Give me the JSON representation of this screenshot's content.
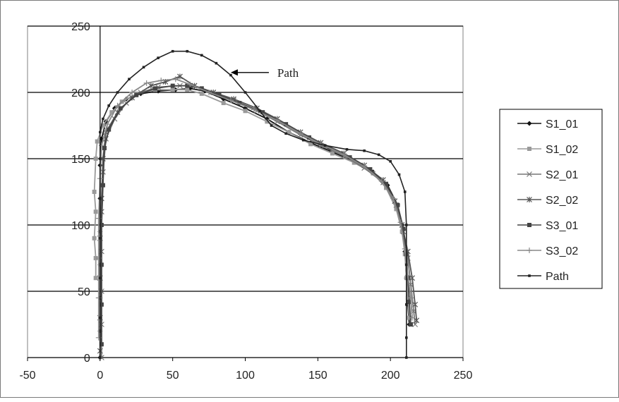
{
  "chart_data": {
    "type": "scatter",
    "title": "",
    "xlabel": "",
    "ylabel": "",
    "xlim": [
      -50,
      250
    ],
    "ylim": [
      0,
      250
    ],
    "x_ticks": [
      "-50",
      "0",
      "50",
      "100",
      "150",
      "200",
      "250"
    ],
    "y_ticks": [
      "0",
      "50",
      "100",
      "150",
      "200",
      "250"
    ],
    "grid": "horizontal major gridlines",
    "legend_position": "right",
    "annotation": {
      "text": "Path",
      "points_to": [
        90,
        215
      ]
    },
    "series": [
      {
        "name": "S1_01",
        "color": "#111111",
        "marker": "diamond",
        "points": [
          [
            0,
            0
          ],
          [
            0,
            20
          ],
          [
            0,
            45
          ],
          [
            0,
            70
          ],
          [
            0,
            95
          ],
          [
            0,
            120
          ],
          [
            0,
            145
          ],
          [
            1,
            165
          ],
          [
            4,
            178
          ],
          [
            10,
            188
          ],
          [
            18,
            195
          ],
          [
            28,
            199
          ],
          [
            40,
            201
          ],
          [
            52,
            202
          ],
          [
            62,
            203
          ],
          [
            72,
            201
          ],
          [
            85,
            195
          ],
          [
            100,
            188
          ],
          [
            115,
            180
          ],
          [
            130,
            170
          ],
          [
            145,
            162
          ],
          [
            160,
            155
          ],
          [
            175,
            148
          ],
          [
            188,
            140
          ],
          [
            198,
            130
          ],
          [
            205,
            115
          ],
          [
            208,
            100
          ],
          [
            210,
            80
          ],
          [
            211,
            60
          ],
          [
            212,
            40
          ],
          [
            213,
            25
          ]
        ]
      },
      {
        "name": "S1_02",
        "color": "#9a9a9a",
        "marker": "square",
        "points": [
          [
            -3,
            60
          ],
          [
            -3,
            75
          ],
          [
            -4,
            90
          ],
          [
            -3,
            110
          ],
          [
            -4,
            125
          ],
          [
            -3,
            150
          ],
          [
            -2,
            163
          ],
          [
            2,
            175
          ],
          [
            8,
            185
          ],
          [
            15,
            193
          ],
          [
            25,
            199
          ],
          [
            38,
            202
          ],
          [
            50,
            202
          ],
          [
            60,
            202
          ],
          [
            70,
            199
          ],
          [
            85,
            192
          ],
          [
            100,
            186
          ],
          [
            115,
            178
          ],
          [
            130,
            170
          ],
          [
            145,
            161
          ],
          [
            160,
            154
          ],
          [
            175,
            147
          ],
          [
            188,
            139
          ],
          [
            197,
            128
          ],
          [
            204,
            112
          ],
          [
            208,
            95
          ],
          [
            210,
            78
          ],
          [
            211,
            60
          ],
          [
            212,
            45
          ],
          [
            213,
            30
          ]
        ]
      },
      {
        "name": "S2_01",
        "color": "#777777",
        "marker": "x",
        "points": [
          [
            1,
            0
          ],
          [
            1,
            25
          ],
          [
            1,
            50
          ],
          [
            1,
            80
          ],
          [
            1,
            110
          ],
          [
            2,
            140
          ],
          [
            4,
            165
          ],
          [
            10,
            180
          ],
          [
            18,
            192
          ],
          [
            28,
            200
          ],
          [
            40,
            204
          ],
          [
            55,
            205
          ],
          [
            65,
            205
          ],
          [
            78,
            200
          ],
          [
            92,
            194
          ],
          [
            108,
            186
          ],
          [
            122,
            178
          ],
          [
            138,
            168
          ],
          [
            152,
            160
          ],
          [
            168,
            152
          ],
          [
            182,
            143
          ],
          [
            195,
            132
          ],
          [
            204,
            115
          ],
          [
            209,
            95
          ],
          [
            212,
            75
          ],
          [
            214,
            55
          ],
          [
            216,
            35
          ],
          [
            217,
            25
          ]
        ]
      },
      {
        "name": "S2_02",
        "color": "#555555",
        "marker": "star",
        "points": [
          [
            0,
            5
          ],
          [
            0,
            30
          ],
          [
            0,
            60
          ],
          [
            0,
            90
          ],
          [
            1,
            120
          ],
          [
            2,
            150
          ],
          [
            4,
            170
          ],
          [
            12,
            185
          ],
          [
            22,
            196
          ],
          [
            35,
            205
          ],
          [
            45,
            208
          ],
          [
            55,
            212
          ],
          [
            65,
            205
          ],
          [
            78,
            200
          ],
          [
            92,
            195
          ],
          [
            108,
            188
          ],
          [
            122,
            180
          ],
          [
            138,
            170
          ],
          [
            152,
            162
          ],
          [
            168,
            154
          ],
          [
            182,
            145
          ],
          [
            195,
            134
          ],
          [
            203,
            118
          ],
          [
            208,
            100
          ],
          [
            212,
            80
          ],
          [
            215,
            60
          ],
          [
            217,
            40
          ],
          [
            218,
            28
          ]
        ]
      },
      {
        "name": "S3_01",
        "color": "#444444",
        "marker": "square",
        "points": [
          [
            1,
            10
          ],
          [
            1,
            40
          ],
          [
            1,
            70
          ],
          [
            1,
            100
          ],
          [
            2,
            130
          ],
          [
            3,
            158
          ],
          [
            6,
            172
          ],
          [
            14,
            188
          ],
          [
            25,
            198
          ],
          [
            38,
            203
          ],
          [
            50,
            205
          ],
          [
            60,
            205
          ],
          [
            70,
            203
          ],
          [
            82,
            198
          ],
          [
            96,
            192
          ],
          [
            112,
            185
          ],
          [
            128,
            176
          ],
          [
            144,
            166
          ],
          [
            158,
            158
          ],
          [
            172,
            151
          ],
          [
            186,
            142
          ],
          [
            197,
            131
          ],
          [
            205,
            115
          ],
          [
            209,
            97
          ],
          [
            211,
            78
          ],
          [
            212,
            60
          ],
          [
            213,
            42
          ],
          [
            214,
            25
          ]
        ]
      },
      {
        "name": "S3_02",
        "color": "#888888",
        "marker": "plus",
        "points": [
          [
            -1,
            15
          ],
          [
            -1,
            45
          ],
          [
            -1,
            75
          ],
          [
            -1,
            105
          ],
          [
            0,
            135
          ],
          [
            1,
            160
          ],
          [
            5,
            176
          ],
          [
            12,
            190
          ],
          [
            22,
            200
          ],
          [
            32,
            207
          ],
          [
            42,
            209
          ],
          [
            52,
            210
          ],
          [
            62,
            206
          ],
          [
            75,
            200
          ],
          [
            90,
            194
          ],
          [
            106,
            187
          ],
          [
            122,
            179
          ],
          [
            138,
            169
          ],
          [
            152,
            161
          ],
          [
            168,
            153
          ],
          [
            182,
            144
          ],
          [
            194,
            133
          ],
          [
            202,
            120
          ],
          [
            207,
            102
          ],
          [
            210,
            82
          ],
          [
            212,
            62
          ],
          [
            214,
            45
          ],
          [
            215,
            30
          ]
        ]
      },
      {
        "name": "Path",
        "color": "#222222",
        "marker": "dot",
        "points": [
          [
            0,
            0
          ],
          [
            0,
            30
          ],
          [
            0,
            60
          ],
          [
            0,
            90
          ],
          [
            0,
            120
          ],
          [
            0,
            150
          ],
          [
            0,
            170
          ],
          [
            2,
            180
          ],
          [
            6,
            190
          ],
          [
            12,
            200
          ],
          [
            20,
            210
          ],
          [
            30,
            219
          ],
          [
            40,
            226
          ],
          [
            50,
            231
          ],
          [
            60,
            231
          ],
          [
            70,
            228
          ],
          [
            80,
            222
          ],
          [
            90,
            213
          ],
          [
            100,
            200
          ],
          [
            110,
            186
          ],
          [
            118,
            175
          ],
          [
            128,
            169
          ],
          [
            140,
            164
          ],
          [
            155,
            160
          ],
          [
            170,
            157
          ],
          [
            182,
            156
          ],
          [
            192,
            153
          ],
          [
            200,
            148
          ],
          [
            206,
            138
          ],
          [
            210,
            125
          ],
          [
            211,
            100
          ],
          [
            211,
            70
          ],
          [
            211,
            40
          ],
          [
            211,
            15
          ],
          [
            211,
            0
          ]
        ]
      }
    ]
  }
}
